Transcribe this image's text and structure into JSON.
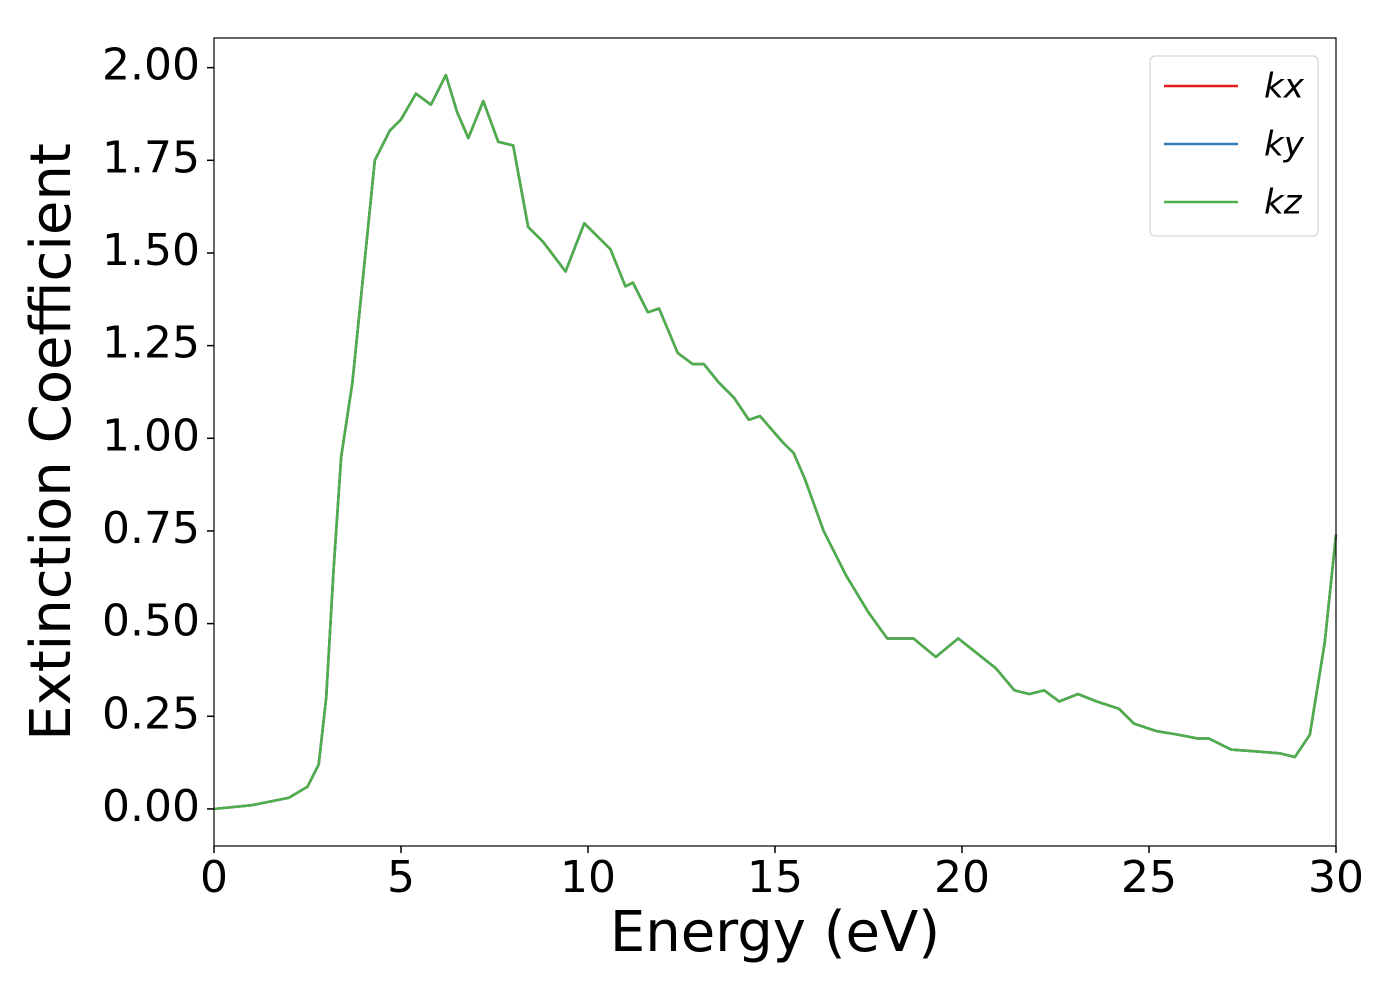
{
  "chart_data": {
    "type": "line",
    "xlabel": "Energy (eV)",
    "ylabel": "Extinction Coefficient",
    "x": [
      0,
      1,
      2,
      2.5,
      2.8,
      3.0,
      3.2,
      3.4,
      3.7,
      4.0,
      4.3,
      4.7,
      5.0,
      5.4,
      5.8,
      6.2,
      6.5,
      6.8,
      7.2,
      7.6,
      8.0,
      8.4,
      8.8,
      9.4,
      9.9,
      10.3,
      10.6,
      11.0,
      11.2,
      11.6,
      11.9,
      12.4,
      12.8,
      13.1,
      13.5,
      13.9,
      14.3,
      14.6,
      15.2,
      15.5,
      15.8,
      16.3,
      16.9,
      17.5,
      18.0,
      18.7,
      19.3,
      19.9,
      20.4,
      20.9,
      21.4,
      21.8,
      22.2,
      22.6,
      23.1,
      23.6,
      24.2,
      24.6,
      25.2,
      25.8,
      26.3,
      26.6,
      27.2,
      27.9,
      28.5,
      28.9,
      29.3,
      29.7,
      30
    ],
    "series": [
      {
        "name": "kx",
        "color": "#e41a1c",
        "values": [
          0.0,
          0.01,
          0.03,
          0.06,
          0.12,
          0.3,
          0.65,
          0.95,
          1.15,
          1.45,
          1.75,
          1.83,
          1.86,
          1.93,
          1.9,
          1.98,
          1.88,
          1.81,
          1.91,
          1.8,
          1.79,
          1.57,
          1.53,
          1.45,
          1.58,
          1.54,
          1.51,
          1.41,
          1.42,
          1.34,
          1.35,
          1.23,
          1.2,
          1.2,
          1.15,
          1.11,
          1.05,
          1.06,
          0.99,
          0.96,
          0.89,
          0.75,
          0.63,
          0.53,
          0.46,
          0.46,
          0.41,
          0.46,
          0.42,
          0.38,
          0.32,
          0.31,
          0.32,
          0.29,
          0.31,
          0.29,
          0.27,
          0.23,
          0.21,
          0.2,
          0.19,
          0.19,
          0.16,
          0.155,
          0.15,
          0.14,
          0.2,
          0.45,
          0.74
        ]
      },
      {
        "name": "ky",
        "color": "#377eb8",
        "values": [
          0.0,
          0.01,
          0.03,
          0.06,
          0.12,
          0.3,
          0.65,
          0.95,
          1.15,
          1.45,
          1.75,
          1.83,
          1.86,
          1.93,
          1.9,
          1.98,
          1.88,
          1.81,
          1.91,
          1.8,
          1.79,
          1.57,
          1.53,
          1.45,
          1.58,
          1.54,
          1.51,
          1.41,
          1.42,
          1.34,
          1.35,
          1.23,
          1.2,
          1.2,
          1.15,
          1.11,
          1.05,
          1.06,
          0.99,
          0.96,
          0.89,
          0.75,
          0.63,
          0.53,
          0.46,
          0.46,
          0.41,
          0.46,
          0.42,
          0.38,
          0.32,
          0.31,
          0.32,
          0.29,
          0.31,
          0.29,
          0.27,
          0.23,
          0.21,
          0.2,
          0.19,
          0.19,
          0.16,
          0.155,
          0.15,
          0.14,
          0.2,
          0.45,
          0.74
        ]
      },
      {
        "name": "kz",
        "color": "#4daf4a",
        "values": [
          0.0,
          0.01,
          0.03,
          0.06,
          0.12,
          0.3,
          0.65,
          0.95,
          1.15,
          1.45,
          1.75,
          1.83,
          1.86,
          1.93,
          1.9,
          1.98,
          1.88,
          1.81,
          1.91,
          1.8,
          1.79,
          1.57,
          1.53,
          1.45,
          1.58,
          1.54,
          1.51,
          1.41,
          1.42,
          1.34,
          1.35,
          1.23,
          1.2,
          1.2,
          1.15,
          1.11,
          1.05,
          1.06,
          0.99,
          0.96,
          0.89,
          0.75,
          0.63,
          0.53,
          0.46,
          0.46,
          0.41,
          0.46,
          0.42,
          0.38,
          0.32,
          0.31,
          0.32,
          0.29,
          0.31,
          0.29,
          0.27,
          0.23,
          0.21,
          0.2,
          0.19,
          0.19,
          0.16,
          0.155,
          0.15,
          0.14,
          0.2,
          0.45,
          0.74
        ]
      }
    ],
    "xlim": [
      0,
      30
    ],
    "xticks": [
      0,
      5,
      10,
      15,
      20,
      25,
      30
    ],
    "ylim": [
      -0.1,
      2.08
    ],
    "yticks": [
      {
        "value": 0,
        "label": "0.00"
      },
      {
        "value": 0.25,
        "label": "0.25"
      },
      {
        "value": 0.5,
        "label": "0.50"
      },
      {
        "value": 0.75,
        "label": "0.75"
      },
      {
        "value": 1,
        "label": "1.00"
      },
      {
        "value": 1.25,
        "label": "1.25"
      },
      {
        "value": 1.5,
        "label": "1.50"
      },
      {
        "value": 1.75,
        "label": "1.75"
      },
      {
        "value": 2,
        "label": "2.00"
      }
    ],
    "grid": false,
    "legend": "upper right"
  }
}
